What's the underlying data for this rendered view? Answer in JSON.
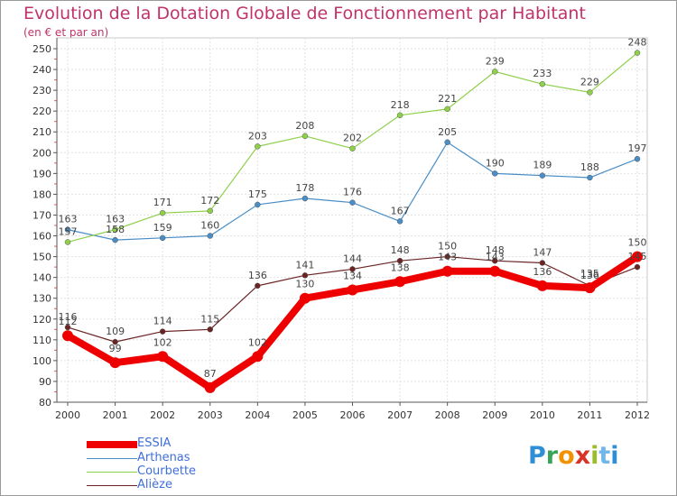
{
  "header": {
    "title": "Evolution de la Dotation Globale de Fonctionnement par Habitant",
    "subtitle": "(en € et par an)"
  },
  "brand": {
    "name": "Proxiti",
    "letters": [
      "P",
      "r",
      "o",
      "x",
      "i",
      "t",
      "i"
    ],
    "letter_colors": [
      "#2f8fd6",
      "#3aa35a",
      "#f39200",
      "#d93327",
      "#9bbd2a",
      "#6fb7e8",
      "#2f8fd6"
    ]
  },
  "chart_data": {
    "type": "line",
    "title": "Evolution de la Dotation Globale de Fonctionnement par Habitant",
    "subtitle": "(en € et par an)",
    "x": [
      "2000",
      "2001",
      "2002",
      "2003",
      "2004",
      "2005",
      "2006",
      "2007",
      "2008",
      "2009",
      "2010",
      "2011",
      "2012"
    ],
    "ylim": [
      80,
      250
    ],
    "yticks": [
      80,
      90,
      100,
      110,
      120,
      130,
      140,
      150,
      160,
      170,
      180,
      190,
      200,
      210,
      220,
      230,
      240,
      250
    ],
    "grid": true,
    "legend_position": "bottom-left",
    "series": [
      {
        "name": "ESSIA",
        "color": "#ee0000",
        "values": [
          112,
          99,
          102,
          87,
          102,
          130,
          134,
          138,
          143,
          143,
          136,
          135,
          150
        ]
      },
      {
        "name": "Arthenas",
        "color": "#4a8ec7",
        "values": [
          163,
          158,
          159,
          160,
          175,
          178,
          176,
          167,
          205,
          190,
          189,
          188,
          197
        ]
      },
      {
        "name": "Courbette",
        "color": "#8ed04a",
        "values": [
          157,
          163,
          171,
          172,
          203,
          208,
          202,
          218,
          221,
          239,
          233,
          229,
          248
        ]
      },
      {
        "name": "Alièze",
        "color": "#6b2424",
        "values": [
          116,
          109,
          114,
          115,
          136,
          141,
          144,
          148,
          150,
          148,
          147,
          136,
          145
        ]
      }
    ]
  }
}
